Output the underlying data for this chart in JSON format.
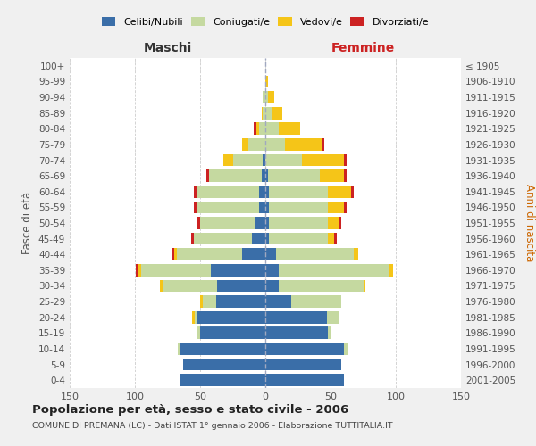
{
  "age_groups": [
    "0-4",
    "5-9",
    "10-14",
    "15-19",
    "20-24",
    "25-29",
    "30-34",
    "35-39",
    "40-44",
    "45-49",
    "50-54",
    "55-59",
    "60-64",
    "65-69",
    "70-74",
    "75-79",
    "80-84",
    "85-89",
    "90-94",
    "95-99",
    "100+"
  ],
  "birth_years": [
    "2001-2005",
    "1996-2000",
    "1991-1995",
    "1986-1990",
    "1981-1985",
    "1976-1980",
    "1971-1975",
    "1966-1970",
    "1961-1965",
    "1956-1960",
    "1951-1955",
    "1946-1950",
    "1941-1945",
    "1936-1940",
    "1931-1935",
    "1926-1930",
    "1921-1925",
    "1916-1920",
    "1911-1915",
    "1906-1910",
    "≤ 1905"
  ],
  "male": {
    "celibi": [
      65,
      63,
      65,
      50,
      52,
      38,
      37,
      42,
      18,
      10,
      8,
      5,
      5,
      3,
      2,
      0,
      0,
      0,
      0,
      0,
      0
    ],
    "coniugati": [
      0,
      0,
      2,
      2,
      2,
      10,
      42,
      53,
      50,
      45,
      42,
      48,
      48,
      40,
      23,
      13,
      5,
      2,
      2,
      0,
      0
    ],
    "vedovi": [
      0,
      0,
      0,
      0,
      2,
      2,
      2,
      2,
      2,
      0,
      0,
      0,
      0,
      0,
      7,
      5,
      2,
      1,
      0,
      0,
      0
    ],
    "divorziati": [
      0,
      0,
      0,
      0,
      0,
      0,
      0,
      2,
      2,
      2,
      2,
      2,
      2,
      2,
      0,
      0,
      2,
      0,
      0,
      0,
      0
    ]
  },
  "female": {
    "nubili": [
      60,
      58,
      60,
      48,
      47,
      20,
      10,
      10,
      8,
      3,
      3,
      3,
      3,
      2,
      0,
      0,
      0,
      0,
      0,
      0,
      0
    ],
    "coniugate": [
      0,
      0,
      3,
      3,
      10,
      38,
      65,
      85,
      60,
      45,
      45,
      45,
      45,
      40,
      28,
      15,
      10,
      5,
      2,
      0,
      0
    ],
    "vedove": [
      0,
      0,
      0,
      0,
      0,
      0,
      2,
      3,
      3,
      5,
      8,
      12,
      18,
      18,
      32,
      28,
      17,
      8,
      5,
      2,
      0
    ],
    "divorziate": [
      0,
      0,
      0,
      0,
      0,
      0,
      0,
      0,
      0,
      2,
      2,
      2,
      2,
      2,
      2,
      2,
      0,
      0,
      0,
      0,
      0
    ]
  },
  "colors": {
    "celibi": "#3a6ea8",
    "coniugati": "#c5d9a0",
    "vedovi": "#f5c518",
    "divorziati": "#cc2222"
  },
  "xlim": 150,
  "title": "Popolazione per età, sesso e stato civile - 2006",
  "subtitle": "COMUNE DI PREMANA (LC) - Dati ISTAT 1° gennaio 2006 - Elaborazione TUTTITALIA.IT",
  "ylabel_left": "Fasce di età",
  "ylabel_right": "Anni di nascita",
  "xlabel_left": "Maschi",
  "xlabel_right": "Femmine",
  "bg_color": "#f0f0f0",
  "plot_bg": "#ffffff"
}
